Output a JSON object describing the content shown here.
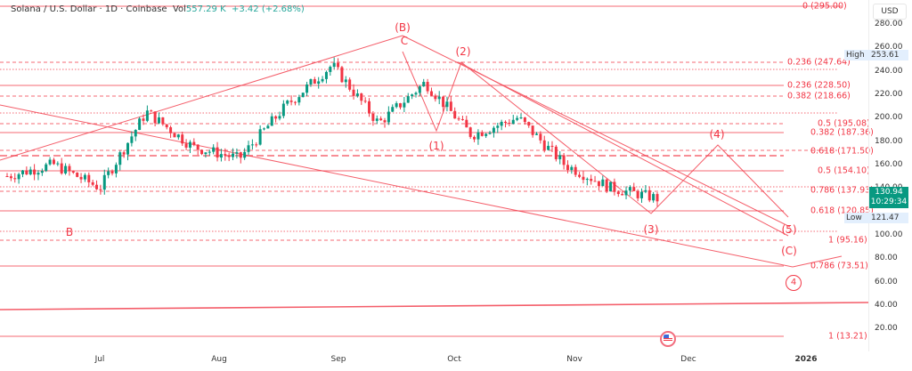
{
  "header": {
    "symbol": "Solana / U.S. Dollar · 1D · Coinbase",
    "vol_label": "Vol",
    "vol_value": "557.29 K",
    "change": "+3.42 (+2.68%)"
  },
  "axis": {
    "currency": "USD",
    "y_ticks": [
      "280.00",
      "260.00",
      "240.00",
      "220.00",
      "200.00",
      "180.00",
      "160.00",
      "140.00",
      "100.00",
      "80.00",
      "60.00",
      "40.00",
      "20.00"
    ],
    "x_ticks": [
      "Jul",
      "Aug",
      "Sep",
      "Oct",
      "Nov",
      "Dec",
      "2026"
    ]
  },
  "badges": {
    "high_label": "High",
    "high_value": "253.61",
    "low_label": "Low",
    "low_value": "121.47",
    "price": "130.94",
    "countdown": "10:29:34"
  },
  "fib_levels": [
    {
      "label": "0 (295.00)",
      "price": 295.0
    },
    {
      "label": "0.236 (247.64)",
      "price": 247.64
    },
    {
      "label": "0.236 (228.50)",
      "price": 228.5
    },
    {
      "label": "0.382 (218.66)",
      "price": 218.66
    },
    {
      "label": "0.5 (195.08)",
      "price": 195.08
    },
    {
      "label": "0.382 (187.36)",
      "price": 187.36
    },
    {
      "label": "0.618 (171.50)",
      "price": 171.5
    },
    {
      "label": "0.5 (154.10)",
      "price": 154.1
    },
    {
      "label": "0.786 (137.93)",
      "price": 137.93
    },
    {
      "label": "0.618 (120.85)",
      "price": 120.85
    },
    {
      "label": "1 (95.16)",
      "price": 95.16
    },
    {
      "label": "0.786 (73.51)",
      "price": 73.51
    },
    {
      "label": "1 (13.21)",
      "price": 13.21
    }
  ],
  "wave_labels": {
    "B_upper": "(B)",
    "C_upper": "C",
    "w1": "(1)",
    "w2": "(2)",
    "w3": "(3)",
    "w4": "(4)",
    "w5": "(5)",
    "wC": "(C)",
    "B_lower": "B",
    "circle4": "4"
  },
  "colors": {
    "up": "#089981",
    "down": "#f23645",
    "drawing": "#f23645"
  },
  "chart_data": {
    "type": "candlestick",
    "title": "Solana / U.S. Dollar · 1D · Coinbase",
    "xlabel": "",
    "ylabel": "USD",
    "ylim": [
      10,
      300
    ],
    "x_ticks": [
      "Jul",
      "Aug",
      "Sep",
      "Oct",
      "Nov",
      "Dec",
      "2026"
    ],
    "last_price": 130.94,
    "high": 253.61,
    "low": 121.47,
    "change": "+3.42 (+2.68%)",
    "volume": "557.29K",
    "approx_path": [
      {
        "x": "late Jun",
        "close": 150
      },
      {
        "x": "early Jul",
        "close": 160
      },
      {
        "x": "mid Jul",
        "close": 140
      },
      {
        "x": "late Jul",
        "close": 205
      },
      {
        "x": "early Aug",
        "close": 175
      },
      {
        "x": "mid Aug",
        "close": 165
      },
      {
        "x": "late Aug",
        "close": 210
      },
      {
        "x": "mid Sep",
        "close": 245
      },
      {
        "x": "late Sep",
        "close": 195
      },
      {
        "x": "early Oct",
        "close": 230
      },
      {
        "x": "mid Oct",
        "close": 185
      },
      {
        "x": "late Oct",
        "close": 200
      },
      {
        "x": "early Nov",
        "close": 160
      },
      {
        "x": "mid Nov",
        "close": 140
      },
      {
        "x": "late Nov",
        "close": 131
      }
    ],
    "annotations": [
      "(B)",
      "C",
      "(1)",
      "(2)",
      "(3)",
      "(4)",
      "(5)",
      "(C)",
      "B",
      "4"
    ],
    "fib_levels": [
      295.0,
      247.64,
      228.5,
      218.66,
      195.08,
      187.36,
      171.5,
      154.1,
      137.93,
      120.85,
      95.16,
      73.51,
      13.21
    ],
    "grid": false,
    "legend": "none"
  }
}
